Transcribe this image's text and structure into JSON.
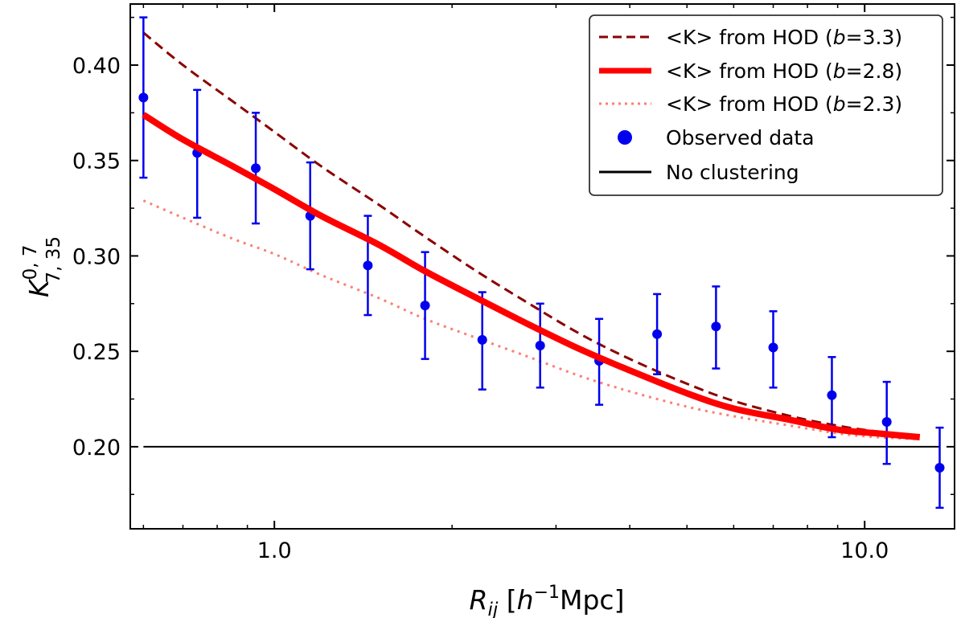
{
  "chart_data": {
    "type": "line",
    "x_scale": "log",
    "xlim": [
      0.57,
      14.2
    ],
    "ylim": [
      0.157,
      0.432
    ],
    "xticks": [
      1.0,
      10.0
    ],
    "xtick_labels": [
      "1.0",
      "10.0"
    ],
    "yticks": [
      0.2,
      0.25,
      0.3,
      0.35,
      0.4
    ],
    "ytick_labels": [
      "0.20",
      "0.25",
      "0.30",
      "0.35",
      "0.40"
    ],
    "xlabel": {
      "main": "R",
      "sub": "ij",
      "bracket_open": " [",
      "h": "h",
      "sup": "−1",
      "unit": "Mpc]"
    },
    "ylabel": {
      "main": "K",
      "sup": "0, 7",
      "sub": "7, 35"
    },
    "grid": false,
    "legend_position": "top-right",
    "series": [
      {
        "name": "hod_b33",
        "label_prefix": "<K> from HOD (",
        "label_b": "b",
        "label_suffix": "=3.3)",
        "style": "dashed",
        "color": "#8B0000",
        "x": [
          0.6,
          0.7,
          0.85,
          1.0,
          1.2,
          1.5,
          1.8,
          2.2,
          2.7,
          3.3,
          4.0,
          5.0,
          6.0,
          7.5,
          9.0,
          10.5,
          12.4
        ],
        "y": [
          0.417,
          0.4,
          0.381,
          0.365,
          0.347,
          0.327,
          0.31,
          0.292,
          0.275,
          0.259,
          0.246,
          0.233,
          0.224,
          0.216,
          0.211,
          0.208,
          0.206
        ]
      },
      {
        "name": "hod_b28",
        "label_prefix": "<K> from HOD (",
        "label_b": "b",
        "label_suffix": "=2.8)",
        "style": "solid-thick",
        "color": "#FF0000",
        "x": [
          0.6,
          0.7,
          0.85,
          1.0,
          1.2,
          1.5,
          1.8,
          2.2,
          2.7,
          3.3,
          4.0,
          5.0,
          6.0,
          7.5,
          9.0,
          10.5,
          12.4
        ],
        "y": [
          0.374,
          0.361,
          0.347,
          0.335,
          0.321,
          0.306,
          0.292,
          0.278,
          0.264,
          0.251,
          0.24,
          0.228,
          0.22,
          0.214,
          0.209,
          0.207,
          0.205
        ]
      },
      {
        "name": "hod_b23",
        "label_prefix": "<K> from HOD (",
        "label_b": "b",
        "label_suffix": "=2.3)",
        "style": "dotted",
        "color": "#FA8072",
        "x": [
          0.6,
          0.7,
          0.85,
          1.0,
          1.2,
          1.5,
          1.8,
          2.2,
          2.7,
          3.3,
          4.0,
          5.0,
          6.0,
          7.5,
          9.0,
          10.5,
          12.4
        ],
        "y": [
          0.329,
          0.32,
          0.309,
          0.301,
          0.29,
          0.278,
          0.267,
          0.257,
          0.247,
          0.237,
          0.229,
          0.221,
          0.216,
          0.211,
          0.207,
          0.205,
          0.204
        ]
      },
      {
        "name": "observed",
        "label": "Observed data",
        "style": "points-errorbars",
        "color": "#0000EE",
        "x": [
          0.6,
          0.74,
          0.93,
          1.15,
          1.44,
          1.8,
          2.25,
          2.82,
          3.55,
          4.45,
          5.6,
          7.0,
          8.8,
          10.9,
          13.4
        ],
        "y": [
          0.383,
          0.354,
          0.346,
          0.321,
          0.295,
          0.274,
          0.256,
          0.253,
          0.245,
          0.259,
          0.263,
          0.252,
          0.227,
          0.213,
          0.189
        ],
        "err_low": [
          0.341,
          0.32,
          0.317,
          0.293,
          0.269,
          0.246,
          0.23,
          0.231,
          0.222,
          0.238,
          0.241,
          0.231,
          0.205,
          0.191,
          0.168
        ],
        "err_high": [
          0.425,
          0.387,
          0.375,
          0.349,
          0.321,
          0.302,
          0.281,
          0.275,
          0.267,
          0.28,
          0.284,
          0.271,
          0.247,
          0.234,
          0.21
        ]
      },
      {
        "name": "no_clustering",
        "label": "No clustering",
        "style": "solid",
        "color": "#000000",
        "x": [
          0.6,
          13.4
        ],
        "y": [
          0.2,
          0.2
        ]
      }
    ]
  }
}
